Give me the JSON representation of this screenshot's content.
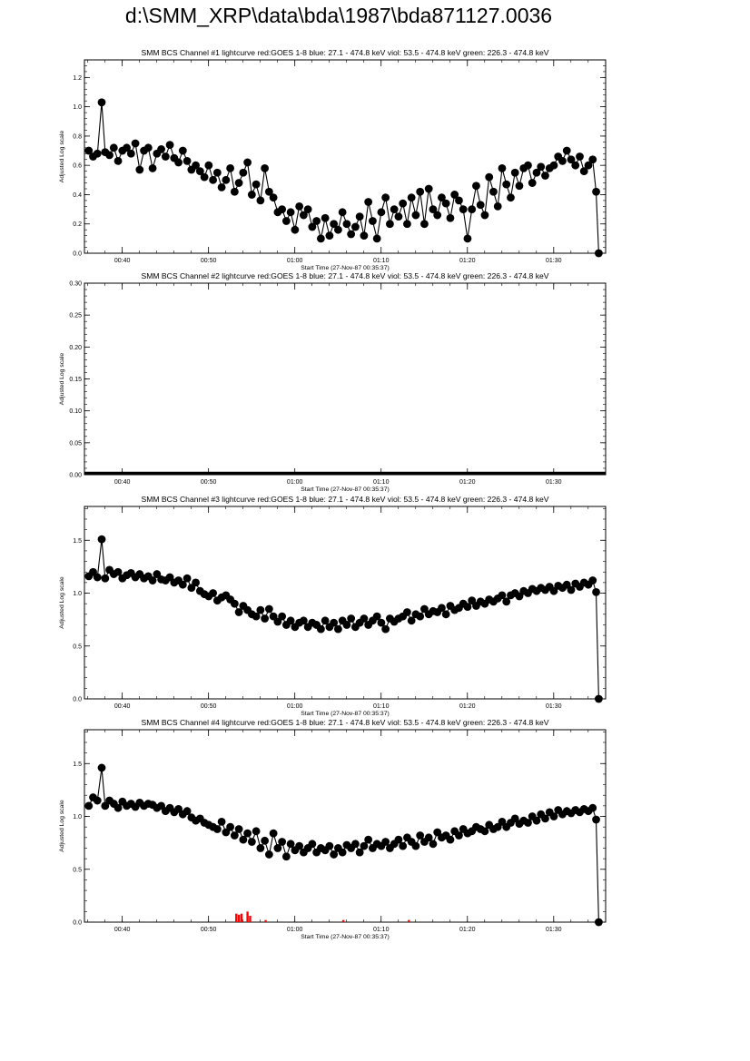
{
  "page_title": "d:\\SMM_XRP\\data\\bda\\1987\\bda871127.0036",
  "colors": {
    "data": "#000000",
    "goes": "#ff0000",
    "background": "#ffffff"
  },
  "chart_data": [
    {
      "type": "scatter",
      "title": "SMM BCS Channel #1 lightcurve  red:GOES 1-8  blue: 27.1 - 474.8 keV  viol: 53.5 - 474.8 keV  green: 226.3 - 474.8 keV",
      "xlabel": "Start Time (27-Nov-87 00:35:37)",
      "ylabel": "Adjusted Log scale",
      "x_ticks": [
        "00:40",
        "00:50",
        "01:00",
        "01:10",
        "01:20",
        "01:30"
      ],
      "x_tick_minutes": [
        4.38,
        14.38,
        24.38,
        34.38,
        44.38,
        54.38
      ],
      "xlim_minutes": [
        0,
        60.4
      ],
      "y_ticks": [
        "0.0",
        "0.2",
        "0.4",
        "0.6",
        "0.8",
        "1.0",
        "1.2"
      ],
      "ylim": [
        0,
        1.32
      ],
      "series": [
        {
          "x_minutes": [
            0.5,
            1,
            1.5,
            2,
            2.4,
            2.9,
            3.4,
            3.9,
            4.4,
            4.9,
            5.4,
            5.9,
            6.4,
            6.9,
            7.4,
            7.9,
            8.4,
            8.9,
            9.4,
            9.9,
            10.4,
            10.9,
            11.4,
            11.9,
            12.4,
            12.9,
            13.4,
            13.9,
            14.4,
            14.9,
            15.4,
            15.9,
            16.4,
            16.9,
            17.4,
            17.9,
            18.4,
            18.9,
            19.4,
            19.9,
            20.4,
            20.9,
            21.4,
            21.9,
            22.4,
            22.9,
            23.4,
            23.9,
            24.4,
            24.9,
            25.4,
            25.9,
            26.4,
            26.9,
            27.4,
            27.9,
            28.4,
            28.9,
            29.4,
            29.9,
            30.4,
            30.9,
            31.4,
            31.9,
            32.4,
            32.9,
            33.4,
            33.9,
            34.4,
            34.9,
            35.4,
            35.9,
            36.4,
            36.9,
            37.4,
            37.9,
            38.4,
            38.9,
            39.4,
            39.9,
            40.4,
            40.9,
            41.4,
            41.9,
            42.4,
            42.9,
            43.4,
            43.9,
            44.4,
            44.9,
            45.4,
            45.9,
            46.4,
            46.9,
            47.4,
            47.9,
            48.4,
            48.9,
            49.4,
            49.9,
            50.4,
            50.9,
            51.4,
            51.9,
            52.4,
            52.9,
            53.4,
            53.9,
            54.4,
            54.9,
            55.4,
            55.9,
            56.4,
            56.9,
            57.4,
            57.9,
            58.4,
            58.9,
            59.3,
            59.6
          ],
          "values": [
            0.7,
            0.66,
            0.68,
            1.03,
            0.69,
            0.67,
            0.72,
            0.63,
            0.7,
            0.72,
            0.68,
            0.75,
            0.57,
            0.7,
            0.72,
            0.58,
            0.68,
            0.71,
            0.66,
            0.74,
            0.65,
            0.62,
            0.7,
            0.63,
            0.57,
            0.6,
            0.56,
            0.52,
            0.6,
            0.5,
            0.55,
            0.45,
            0.5,
            0.58,
            0.42,
            0.48,
            0.55,
            0.62,
            0.4,
            0.47,
            0.36,
            0.58,
            0.42,
            0.38,
            0.28,
            0.3,
            0.22,
            0.28,
            0.16,
            0.32,
            0.26,
            0.3,
            0.18,
            0.22,
            0.1,
            0.24,
            0.12,
            0.2,
            0.16,
            0.28,
            0.2,
            0.13,
            0.18,
            0.25,
            0.12,
            0.35,
            0.22,
            0.1,
            0.28,
            0.38,
            0.2,
            0.3,
            0.25,
            0.34,
            0.2,
            0.38,
            0.26,
            0.42,
            0.2,
            0.44,
            0.3,
            0.26,
            0.38,
            0.34,
            0.24,
            0.4,
            0.36,
            0.3,
            0.1,
            0.3,
            0.46,
            0.33,
            0.26,
            0.52,
            0.42,
            0.32,
            0.58,
            0.47,
            0.38,
            0.55,
            0.46,
            0.58,
            0.6,
            0.48,
            0.55,
            0.59,
            0.53,
            0.58,
            0.6,
            0.66,
            0.63,
            0.7,
            0.64,
            0.6,
            0.66,
            0.56,
            0.6,
            0.64,
            0.42,
            0.0
          ]
        }
      ]
    },
    {
      "type": "scatter",
      "title": "SMM BCS Channel #2 lightcurve  red:GOES 1-8  blue: 27.1 - 474.8 keV  viol: 53.5 - 474.8 keV  green: 226.3 - 474.8 keV",
      "xlabel": "Start Time (27-Nov-87 00:35:37)",
      "ylabel": "Adjusted Log scale",
      "x_ticks": [
        "00:40",
        "00:50",
        "01:00",
        "01:10",
        "01:20",
        "01:30"
      ],
      "x_tick_minutes": [
        4.38,
        14.38,
        24.38,
        34.38,
        44.38,
        54.38
      ],
      "xlim_minutes": [
        0,
        60.4
      ],
      "y_ticks": [
        "0.00",
        "0.05",
        "0.10",
        "0.15",
        "0.20",
        "0.25",
        "0.30"
      ],
      "ylim": [
        0,
        0.3
      ],
      "series": [
        {
          "x_minutes": [
            0,
            60.4
          ],
          "values": [
            0.0,
            0.0
          ]
        }
      ]
    },
    {
      "type": "scatter",
      "title": "SMM BCS Channel #3 lightcurve  red:GOES 1-8  blue: 27.1 - 474.8 keV  viol: 53.5 - 474.8 keV  green: 226.3 - 474.8 keV",
      "xlabel": "Start Time (27-Nov-87 00:35:37)",
      "ylabel": "Adjusted Log scale",
      "x_ticks": [
        "00:40",
        "00:50",
        "01:00",
        "01:10",
        "01:20",
        "01:30"
      ],
      "x_tick_minutes": [
        4.38,
        14.38,
        24.38,
        34.38,
        44.38,
        54.38
      ],
      "xlim_minutes": [
        0,
        60.4
      ],
      "y_ticks": [
        "0.0",
        "0.5",
        "1.0",
        "1.5"
      ],
      "ylim": [
        0,
        1.82
      ],
      "series": [
        {
          "x_minutes": [
            0.5,
            1,
            1.5,
            2,
            2.4,
            2.9,
            3.4,
            3.9,
            4.4,
            4.9,
            5.4,
            5.9,
            6.4,
            6.9,
            7.4,
            7.9,
            8.4,
            8.9,
            9.4,
            9.9,
            10.4,
            10.9,
            11.4,
            11.9,
            12.4,
            12.9,
            13.4,
            13.9,
            14.4,
            14.9,
            15.4,
            15.9,
            16.4,
            16.9,
            17.4,
            17.9,
            18.4,
            18.9,
            19.4,
            19.9,
            20.4,
            20.9,
            21.4,
            21.9,
            22.4,
            22.9,
            23.4,
            23.9,
            24.4,
            24.9,
            25.4,
            25.9,
            26.4,
            26.9,
            27.4,
            27.9,
            28.4,
            28.9,
            29.4,
            29.9,
            30.4,
            30.9,
            31.4,
            31.9,
            32.4,
            32.9,
            33.4,
            33.9,
            34.4,
            34.9,
            35.4,
            35.9,
            36.4,
            36.9,
            37.4,
            37.9,
            38.4,
            38.9,
            39.4,
            39.9,
            40.4,
            40.9,
            41.4,
            41.9,
            42.4,
            42.9,
            43.4,
            43.9,
            44.4,
            44.9,
            45.4,
            45.9,
            46.4,
            46.9,
            47.4,
            47.9,
            48.4,
            48.9,
            49.4,
            49.9,
            50.4,
            50.9,
            51.4,
            51.9,
            52.4,
            52.9,
            53.4,
            53.9,
            54.4,
            54.9,
            55.4,
            55.9,
            56.4,
            56.9,
            57.4,
            57.9,
            58.4,
            58.9,
            59.3,
            59.6
          ],
          "values": [
            1.16,
            1.2,
            1.15,
            1.51,
            1.14,
            1.22,
            1.18,
            1.2,
            1.14,
            1.17,
            1.19,
            1.15,
            1.18,
            1.14,
            1.16,
            1.12,
            1.18,
            1.13,
            1.12,
            1.15,
            1.1,
            1.12,
            1.08,
            1.14,
            1.05,
            1.1,
            1.02,
            0.99,
            0.97,
            1.0,
            0.93,
            0.96,
            0.98,
            0.94,
            0.9,
            0.82,
            0.88,
            0.84,
            0.8,
            0.78,
            0.84,
            0.76,
            0.85,
            0.78,
            0.73,
            0.78,
            0.7,
            0.74,
            0.68,
            0.72,
            0.74,
            0.68,
            0.72,
            0.7,
            0.66,
            0.74,
            0.68,
            0.72,
            0.66,
            0.74,
            0.7,
            0.76,
            0.68,
            0.72,
            0.76,
            0.7,
            0.74,
            0.78,
            0.72,
            0.66,
            0.76,
            0.73,
            0.76,
            0.78,
            0.82,
            0.74,
            0.8,
            0.78,
            0.85,
            0.8,
            0.83,
            0.82,
            0.86,
            0.8,
            0.88,
            0.84,
            0.86,
            0.9,
            0.87,
            0.93,
            0.88,
            0.92,
            0.9,
            0.94,
            0.92,
            0.95,
            0.98,
            0.92,
            0.98,
            1.0,
            0.97,
            1.02,
            1.0,
            1.04,
            1.02,
            1.05,
            1.03,
            1.06,
            1.02,
            1.07,
            1.05,
            1.08,
            1.03,
            1.09,
            1.06,
            1.1,
            1.08,
            1.12,
            1.01,
            0.0
          ]
        }
      ]
    },
    {
      "type": "scatter",
      "title": "SMM BCS Channel #4 lightcurve  red:GOES 1-8  blue: 27.1 - 474.8 keV  viol: 53.5 - 474.8 keV  green: 226.3 - 474.8 keV",
      "xlabel": "Start Time (27-Nov-87 00:35:37)",
      "ylabel": "Adjusted Log scale",
      "x_ticks": [
        "00:40",
        "00:50",
        "01:00",
        "01:10",
        "01:20",
        "01:30"
      ],
      "x_tick_minutes": [
        4.38,
        14.38,
        24.38,
        34.38,
        44.38,
        54.38
      ],
      "xlim_minutes": [
        0,
        60.4
      ],
      "y_ticks": [
        "0.0",
        "0.5",
        "1.0",
        "1.5"
      ],
      "ylim": [
        0,
        1.82
      ],
      "series": [
        {
          "x_minutes": [
            0.5,
            1,
            1.5,
            2,
            2.4,
            2.9,
            3.4,
            3.9,
            4.4,
            4.9,
            5.4,
            5.9,
            6.4,
            6.9,
            7.4,
            7.9,
            8.4,
            8.9,
            9.4,
            9.9,
            10.4,
            10.9,
            11.4,
            11.9,
            12.4,
            12.9,
            13.4,
            13.9,
            14.4,
            14.9,
            15.4,
            15.9,
            16.4,
            16.9,
            17.4,
            17.9,
            18.4,
            18.9,
            19.4,
            19.9,
            20.4,
            20.9,
            21.4,
            21.9,
            22.4,
            22.9,
            23.4,
            23.9,
            24.4,
            24.9,
            25.4,
            25.9,
            26.4,
            26.9,
            27.4,
            27.9,
            28.4,
            28.9,
            29.4,
            29.9,
            30.4,
            30.9,
            31.4,
            31.9,
            32.4,
            32.9,
            33.4,
            33.9,
            34.4,
            34.9,
            35.4,
            35.9,
            36.4,
            36.9,
            37.4,
            37.9,
            38.4,
            38.9,
            39.4,
            39.9,
            40.4,
            40.9,
            41.4,
            41.9,
            42.4,
            42.9,
            43.4,
            43.9,
            44.4,
            44.9,
            45.4,
            45.9,
            46.4,
            46.9,
            47.4,
            47.9,
            48.4,
            48.9,
            49.4,
            49.9,
            50.4,
            50.9,
            51.4,
            51.9,
            52.4,
            52.9,
            53.4,
            53.9,
            54.4,
            54.9,
            55.4,
            55.9,
            56.4,
            56.9,
            57.4,
            57.9,
            58.4,
            58.9,
            59.3,
            59.6
          ],
          "values": [
            1.1,
            1.18,
            1.15,
            1.46,
            1.1,
            1.15,
            1.12,
            1.08,
            1.14,
            1.1,
            1.12,
            1.09,
            1.13,
            1.1,
            1.12,
            1.11,
            1.08,
            1.1,
            1.05,
            1.08,
            1.04,
            1.07,
            1.02,
            1.05,
            0.99,
            0.96,
            0.98,
            0.94,
            0.92,
            0.9,
            0.88,
            0.95,
            0.85,
            0.9,
            0.82,
            0.88,
            0.78,
            0.84,
            0.76,
            0.86,
            0.7,
            0.77,
            0.64,
            0.84,
            0.7,
            0.76,
            0.62,
            0.74,
            0.68,
            0.72,
            0.66,
            0.7,
            0.74,
            0.66,
            0.7,
            0.68,
            0.72,
            0.64,
            0.7,
            0.66,
            0.73,
            0.7,
            0.74,
            0.66,
            0.72,
            0.78,
            0.7,
            0.74,
            0.72,
            0.76,
            0.7,
            0.74,
            0.78,
            0.72,
            0.8,
            0.76,
            0.72,
            0.82,
            0.76,
            0.8,
            0.74,
            0.85,
            0.8,
            0.82,
            0.78,
            0.86,
            0.82,
            0.88,
            0.84,
            0.86,
            0.9,
            0.88,
            0.86,
            0.92,
            0.88,
            0.9,
            0.95,
            0.9,
            0.94,
            0.98,
            0.93,
            0.96,
            0.94,
            1.0,
            0.96,
            1.02,
            0.98,
            1.04,
            1.0,
            1.06,
            1.02,
            1.05,
            1.03,
            1.06,
            1.04,
            1.07,
            1.05,
            1.08,
            0.97,
            0.0
          ]
        }
      ],
      "goes_spikes": [
        {
          "x_minutes": [
            17.6,
            17.9,
            18.2,
            18.9,
            19.2,
            21.0,
            30.0,
            37.6
          ],
          "values": [
            0.08,
            0.07,
            0.08,
            0.1,
            0.06,
            0.02,
            0.02,
            0.02
          ]
        }
      ]
    }
  ]
}
